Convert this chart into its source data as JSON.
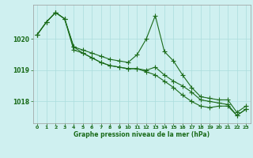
{
  "bg_color": "#cff0f0",
  "line_color": "#1a6b1a",
  "grid_color": "#aadddd",
  "xlabel": "Graphe pression niveau de la mer (hPa)",
  "ylim": [
    1017.3,
    1021.1
  ],
  "xlim": [
    -0.5,
    23.5
  ],
  "yticks": [
    1018,
    1019,
    1020
  ],
  "xticks": [
    0,
    1,
    2,
    3,
    4,
    5,
    6,
    7,
    8,
    9,
    10,
    11,
    12,
    13,
    14,
    15,
    16,
    17,
    18,
    19,
    20,
    21,
    22,
    23
  ],
  "series1": [
    1020.15,
    1020.55,
    1020.85,
    1020.65,
    1019.75,
    1019.65,
    1019.55,
    1019.45,
    1019.35,
    1019.3,
    1019.25,
    1019.5,
    1020.0,
    1020.75,
    1019.6,
    1019.3,
    1018.85,
    1018.45,
    1018.15,
    1018.1,
    1018.05,
    1018.05,
    1017.65,
    1017.85
  ],
  "series2": [
    1020.15,
    1020.55,
    1020.85,
    1020.65,
    1019.65,
    1019.55,
    1019.4,
    1019.25,
    1019.15,
    1019.1,
    1019.05,
    1019.05,
    1019.0,
    1019.1,
    1018.85,
    1018.65,
    1018.5,
    1018.3,
    1018.05,
    1018.0,
    1017.95,
    1017.9,
    1017.55,
    1017.75
  ],
  "series3": [
    1020.15,
    1020.55,
    1020.85,
    1020.65,
    1019.75,
    1019.55,
    1019.4,
    1019.25,
    1019.15,
    1019.1,
    1019.05,
    1019.05,
    1018.95,
    1018.85,
    1018.65,
    1018.45,
    1018.2,
    1018.0,
    1017.85,
    1017.8,
    1017.85,
    1017.85,
    1017.55,
    1017.75
  ]
}
